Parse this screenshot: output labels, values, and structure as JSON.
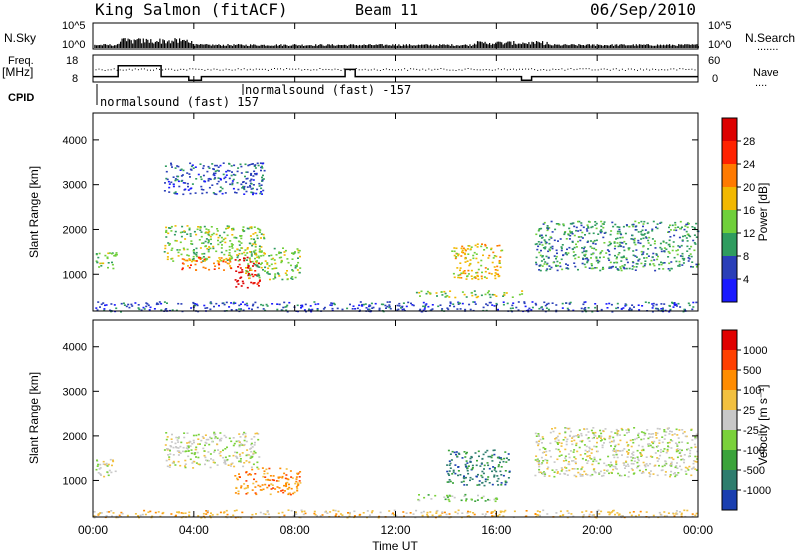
{
  "header": {
    "station": "King Salmon (fitACF)",
    "beam": "Beam 11",
    "date": "06/Sep/2010"
  },
  "side_labels": {
    "nsky": "N.Sky",
    "freq_line1": "Freq.",
    "freq_line2": "[MHz]",
    "cpid": "CPID",
    "nsearch": "N.Search",
    "nave": "Nave"
  },
  "chart_data": [
    {
      "type": "line",
      "panel": "noise",
      "left_ticks": [
        "10^5",
        "10^0"
      ],
      "right_ticks": [
        "10^5",
        "10^0"
      ]
    },
    {
      "type": "line",
      "panel": "frequency",
      "left_ticks": [
        "18",
        "8"
      ],
      "right_ticks": [
        "60",
        "0"
      ],
      "x": [
        0,
        1.0,
        1.0,
        2.7,
        2.7,
        3.8,
        3.8,
        4.3,
        4.3,
        10.0,
        10.0,
        10.4,
        10.4,
        17.0,
        17.0,
        17.4,
        17.4,
        24
      ],
      "freq_mhz": [
        11,
        11,
        17,
        17,
        11,
        11,
        9,
        9,
        11,
        11,
        15,
        15,
        11,
        11,
        9,
        9,
        11,
        11
      ]
    },
    {
      "type": "table",
      "panel": "cpid",
      "entries": [
        {
          "label": "normalsound (fast) 157",
          "start_hour": 0.2
        },
        {
          "label": "normalsound (fast) -157",
          "start_hour": 6.3
        }
      ]
    },
    {
      "type": "heatmap",
      "panel": "power",
      "ylabel": "Slant Range [km]",
      "yticks": [
        "1000",
        "2000",
        "3000",
        "4000"
      ],
      "ylim": [
        180,
        4600
      ],
      "xlim": [
        0,
        24
      ],
      "colorbar_label": "Power [dB]",
      "colorbar_ticks": [
        "4",
        "8",
        "12",
        "16",
        "20",
        "24",
        "28"
      ],
      "colors": [
        "#1a1aff",
        "#2a3fb8",
        "#2f9c5f",
        "#6fcf3a",
        "#f2b800",
        "#ff7a00",
        "#ff2200",
        "#dd0000"
      ],
      "regions": [
        {
          "x": [
            0.1,
            1.0
          ],
          "y": [
            1100,
            1500
          ],
          "level": 3
        },
        {
          "x": [
            2.8,
            6.8
          ],
          "y": [
            1300,
            2100
          ],
          "level": 3
        },
        {
          "x": [
            3.5,
            5.5
          ],
          "y": [
            1100,
            1400
          ],
          "level": 5
        },
        {
          "x": [
            5.6,
            6.6
          ],
          "y": [
            700,
            1400
          ],
          "level": 7
        },
        {
          "x": [
            6.0,
            8.2
          ],
          "y": [
            900,
            1600
          ],
          "level": 3
        },
        {
          "x": [
            2.8,
            6.8
          ],
          "y": [
            2800,
            3500
          ],
          "level": 1
        },
        {
          "x": [
            14.2,
            16.2
          ],
          "y": [
            900,
            1700
          ],
          "level": 4
        },
        {
          "x": [
            12.8,
            17.0
          ],
          "y": [
            500,
            650
          ],
          "level": 3
        },
        {
          "x": [
            17.5,
            24.0
          ],
          "y": [
            1100,
            2200
          ],
          "level": 2
        },
        {
          "x": [
            0.0,
            24.0
          ],
          "y": [
            180,
            400
          ],
          "level": 1
        }
      ]
    },
    {
      "type": "heatmap",
      "panel": "velocity",
      "ylabel": "Slant Range [km]",
      "yticks": [
        "1000",
        "2000",
        "3000",
        "4000"
      ],
      "ylim": [
        180,
        4600
      ],
      "xlim": [
        0,
        24
      ],
      "xticks": [
        "00:00",
        "04:00",
        "08:00",
        "12:00",
        "16:00",
        "20:00",
        "00:00"
      ],
      "xlabel": "Time UT",
      "colorbar_label": "Velocity [m s⁻¹]",
      "colorbar_ticks": [
        "1000",
        "500",
        "100",
        "25",
        "-25",
        "-100",
        "-500",
        "-1000"
      ],
      "colors": [
        "#1a3fb0",
        "#2e7d6e",
        "#3aa33a",
        "#7ad13a",
        "#c8c8c8",
        "#f2c040",
        "#ff8c00",
        "#ff4000",
        "#e00000"
      ],
      "regions": [
        {
          "x": [
            0.1,
            1.0
          ],
          "y": [
            1100,
            1500
          ],
          "level": 4
        },
        {
          "x": [
            2.8,
            6.6
          ],
          "y": [
            1300,
            2100
          ],
          "level": 4
        },
        {
          "x": [
            5.6,
            8.2
          ],
          "y": [
            700,
            1300
          ],
          "level": 6
        },
        {
          "x": [
            14.0,
            16.5
          ],
          "y": [
            900,
            1700
          ],
          "level": 1
        },
        {
          "x": [
            12.8,
            16.0
          ],
          "y": [
            550,
            700
          ],
          "level": 3
        },
        {
          "x": [
            17.5,
            24.0
          ],
          "y": [
            1100,
            2200
          ],
          "level": 4
        },
        {
          "x": [
            0.0,
            24.0
          ],
          "y": [
            180,
            350
          ],
          "level": 5
        }
      ]
    }
  ]
}
